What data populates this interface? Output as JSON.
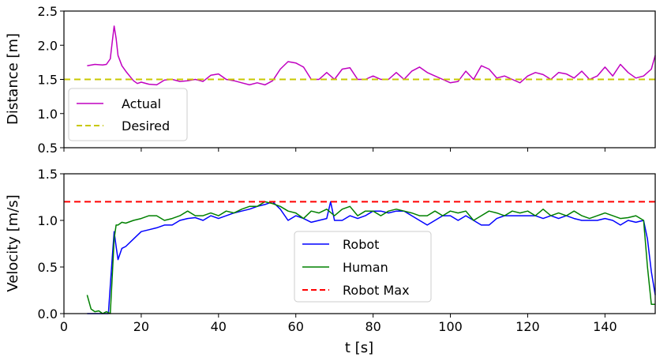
{
  "chart_data": [
    {
      "type": "line",
      "xlabel": "",
      "ylabel": "Distance [m]",
      "xlim": [
        0,
        153
      ],
      "ylim": [
        0.5,
        2.5
      ],
      "xticks": [
        0,
        20,
        40,
        60,
        80,
        100,
        120,
        140
      ],
      "yticks": [
        "0.5",
        "1.0",
        "1.5",
        "2.0",
        "2.5"
      ],
      "legend_position": "lower-left",
      "series": [
        {
          "name": "Actual",
          "color": "#c000c0",
          "style": "solid",
          "x": [
            6,
            8,
            10,
            11,
            12,
            12.5,
            13,
            13.5,
            14,
            15,
            16,
            17,
            18,
            19,
            20,
            22,
            24,
            26,
            28,
            30,
            32,
            34,
            36,
            38,
            40,
            42,
            44,
            46,
            48,
            50,
            52,
            54,
            56,
            58,
            60,
            62,
            64,
            66,
            68,
            70,
            72,
            74,
            76,
            78,
            80,
            82,
            84,
            86,
            88,
            90,
            92,
            94,
            96,
            98,
            100,
            102,
            104,
            106,
            108,
            110,
            112,
            114,
            116,
            118,
            120,
            122,
            124,
            126,
            128,
            130,
            132,
            134,
            136,
            138,
            140,
            142,
            144,
            146,
            148,
            150,
            152,
            153
          ],
          "y": [
            1.7,
            1.72,
            1.71,
            1.72,
            1.8,
            2.05,
            2.28,
            2.1,
            1.85,
            1.7,
            1.62,
            1.55,
            1.48,
            1.44,
            1.46,
            1.43,
            1.42,
            1.49,
            1.5,
            1.47,
            1.48,
            1.5,
            1.47,
            1.56,
            1.58,
            1.5,
            1.48,
            1.45,
            1.42,
            1.45,
            1.42,
            1.48,
            1.65,
            1.76,
            1.74,
            1.68,
            1.5,
            1.5,
            1.6,
            1.5,
            1.65,
            1.67,
            1.5,
            1.5,
            1.55,
            1.5,
            1.5,
            1.6,
            1.5,
            1.62,
            1.68,
            1.6,
            1.55,
            1.5,
            1.45,
            1.47,
            1.62,
            1.5,
            1.7,
            1.65,
            1.52,
            1.55,
            1.5,
            1.45,
            1.55,
            1.6,
            1.57,
            1.5,
            1.6,
            1.58,
            1.52,
            1.62,
            1.5,
            1.55,
            1.68,
            1.55,
            1.72,
            1.6,
            1.52,
            1.55,
            1.65,
            1.85
          ]
        },
        {
          "name": "Desired",
          "color": "#c8c800",
          "style": "dashed",
          "x": [
            0,
            153
          ],
          "y": [
            1.5,
            1.5
          ]
        }
      ]
    },
    {
      "type": "line",
      "xlabel": "t [s]",
      "ylabel": "Velocity [m/s]",
      "xlim": [
        0,
        153
      ],
      "ylim": [
        0.0,
        1.5
      ],
      "xticks": [
        0,
        20,
        40,
        60,
        80,
        100,
        120,
        140
      ],
      "yticks": [
        "0.0",
        "0.5",
        "1.0",
        "1.5"
      ],
      "legend_position": "lower-center",
      "series": [
        {
          "name": "Robot",
          "color": "#0000ff",
          "style": "solid",
          "x": [
            6,
            8,
            10,
            11.5,
            12,
            12.5,
            13,
            13.5,
            14,
            15,
            16,
            18,
            20,
            22,
            24,
            26,
            28,
            30,
            32,
            34,
            36,
            38,
            40,
            42,
            44,
            46,
            48,
            50,
            52,
            54,
            56,
            58,
            60,
            62,
            64,
            66,
            68,
            69,
            70,
            72,
            74,
            76,
            78,
            80,
            82,
            84,
            86,
            88,
            90,
            92,
            94,
            96,
            98,
            100,
            102,
            104,
            106,
            108,
            110,
            112,
            114,
            116,
            118,
            120,
            122,
            124,
            126,
            128,
            130,
            132,
            134,
            136,
            138,
            140,
            142,
            144,
            146,
            148,
            150,
            151,
            152,
            153
          ],
          "y": [
            0.0,
            0.0,
            0.0,
            0.0,
            0.3,
            0.6,
            0.88,
            0.72,
            0.58,
            0.7,
            0.72,
            0.8,
            0.88,
            0.9,
            0.92,
            0.95,
            0.95,
            1.0,
            1.02,
            1.03,
            1.0,
            1.05,
            1.02,
            1.05,
            1.08,
            1.1,
            1.12,
            1.15,
            1.17,
            1.2,
            1.12,
            1.0,
            1.05,
            1.02,
            0.98,
            1.0,
            1.02,
            1.2,
            1.0,
            1.0,
            1.05,
            1.02,
            1.05,
            1.1,
            1.1,
            1.08,
            1.1,
            1.1,
            1.05,
            1.0,
            0.95,
            1.0,
            1.05,
            1.05,
            1.0,
            1.05,
            1.0,
            0.95,
            0.95,
            1.02,
            1.05,
            1.05,
            1.05,
            1.05,
            1.05,
            1.02,
            1.05,
            1.02,
            1.05,
            1.02,
            1.0,
            1.0,
            1.0,
            1.02,
            1.0,
            0.95,
            1.0,
            0.98,
            1.0,
            0.8,
            0.45,
            0.2
          ]
        },
        {
          "name": "Human",
          "color": "#008000",
          "style": "solid",
          "x": [
            6,
            7,
            8,
            9,
            10,
            11,
            12,
            12.5,
            13,
            13.5,
            14,
            15,
            16,
            18,
            20,
            22,
            24,
            26,
            28,
            30,
            32,
            34,
            36,
            38,
            40,
            42,
            44,
            46,
            48,
            50,
            52,
            54,
            56,
            58,
            60,
            62,
            64,
            66,
            68,
            70,
            72,
            74,
            76,
            78,
            80,
            82,
            84,
            86,
            88,
            90,
            92,
            94,
            96,
            98,
            100,
            102,
            104,
            106,
            108,
            110,
            112,
            114,
            116,
            118,
            120,
            122,
            124,
            126,
            128,
            130,
            132,
            134,
            136,
            138,
            140,
            142,
            144,
            146,
            148,
            150,
            151,
            152,
            153
          ],
          "y": [
            0.2,
            0.05,
            0.02,
            0.03,
            0.0,
            0.02,
            0.0,
            0.4,
            0.8,
            0.95,
            0.95,
            0.98,
            0.97,
            1.0,
            1.02,
            1.05,
            1.05,
            1.0,
            1.02,
            1.05,
            1.1,
            1.05,
            1.05,
            1.08,
            1.05,
            1.1,
            1.08,
            1.12,
            1.15,
            1.15,
            1.2,
            1.18,
            1.15,
            1.1,
            1.08,
            1.02,
            1.1,
            1.08,
            1.12,
            1.05,
            1.12,
            1.15,
            1.05,
            1.1,
            1.1,
            1.05,
            1.1,
            1.12,
            1.1,
            1.08,
            1.05,
            1.05,
            1.1,
            1.05,
            1.1,
            1.08,
            1.1,
            1.0,
            1.05,
            1.1,
            1.08,
            1.05,
            1.1,
            1.08,
            1.1,
            1.05,
            1.12,
            1.05,
            1.08,
            1.05,
            1.1,
            1.05,
            1.02,
            1.05,
            1.08,
            1.05,
            1.02,
            1.03,
            1.05,
            1.0,
            0.5,
            0.1,
            0.1
          ]
        },
        {
          "name": "Robot Max",
          "color": "#ff0000",
          "style": "dashed",
          "x": [
            0,
            153
          ],
          "y": [
            1.2,
            1.2
          ]
        }
      ]
    }
  ]
}
